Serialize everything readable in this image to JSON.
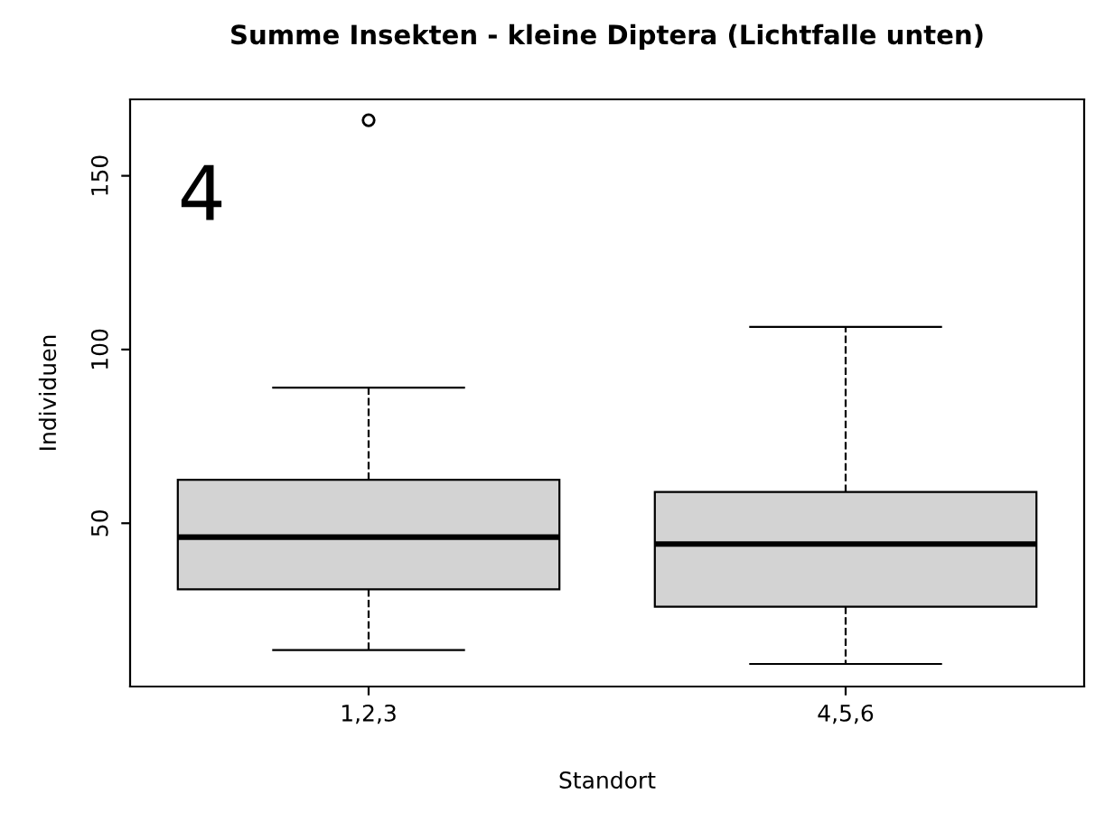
{
  "chart_data": {
    "type": "box",
    "title": "Summe Insekten - kleine Diptera (Lichtfalle unten)",
    "xlabel": "Standort",
    "ylabel": "Individuen",
    "categories": [
      "1,2,3",
      "4,5,6"
    ],
    "color": "#d3d3d3",
    "boxes": [
      {
        "low": 13.5,
        "q1": 31,
        "median": 46,
        "q3": 62.5,
        "high": 89,
        "outliers": [
          166
        ]
      },
      {
        "low": 9.5,
        "q1": 26,
        "median": 44,
        "q3": 59,
        "high": 106.5
      }
    ],
    "ylim": [
      3,
      172
    ],
    "yticks": [
      50,
      100,
      150
    ],
    "grid": false,
    "annotations": [
      "4"
    ]
  }
}
